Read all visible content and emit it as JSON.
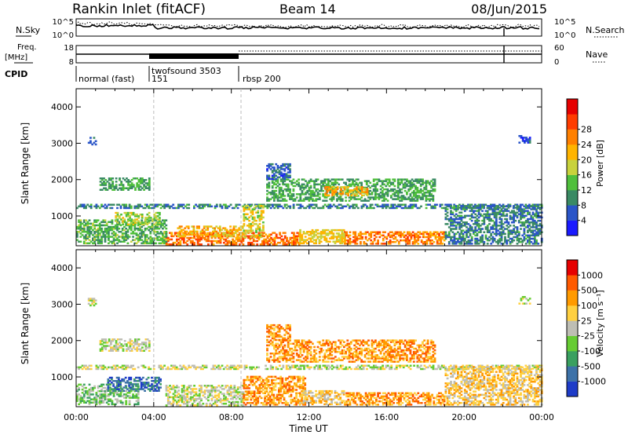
{
  "header": {
    "station": "Rankin Inlet (fitACF)",
    "beam": "Beam 14",
    "date": "08/Jun/2015"
  },
  "status": {
    "nsky_label": "N.Sky",
    "nsky_ticks": [
      "10^5",
      "10^0"
    ],
    "nsearch_label": "N.Search",
    "nsearch_ticks": [
      "10^5",
      "10^0"
    ],
    "freq_label_line1": "Freq.",
    "freq_label_line2": "[MHz]",
    "freq_ticks": [
      "18",
      "8"
    ],
    "nave_label": "Nave",
    "nave_ticks": [
      "60",
      "0"
    ],
    "cpid_label": "CPID",
    "modes": [
      {
        "name": "normal (fast)",
        "start_hour": 0.0
      },
      {
        "name": "151",
        "start_hour": 4.0
      },
      {
        "name": "twofsound 3503",
        "start_hour": 4.0
      },
      {
        "name": "rbsp 200",
        "start_hour": 8.5
      }
    ]
  },
  "chart_data": [
    {
      "type": "heatmap",
      "name": "power",
      "xlabel": "Time UT",
      "ylabel": "Slant Range [km]",
      "xlim": [
        0,
        24
      ],
      "ylim": [
        180,
        4500
      ],
      "yticks": [
        1000,
        2000,
        3000,
        4000
      ],
      "colorbar": {
        "label": "Power [dB]",
        "ticks": [
          "4",
          "8",
          "12",
          "16",
          "20",
          "24",
          "28"
        ],
        "colors": [
          "#1a1aff",
          "#2a55c8",
          "#3a8a64",
          "#4fbf3c",
          "#c8d23c",
          "#ffb400",
          "#ff8000",
          "#ff3c00",
          "#e60000"
        ]
      },
      "regions": [
        {
          "t0": 4.6,
          "t1": 11.5,
          "r0": 200,
          "r1": 520,
          "v": 27
        },
        {
          "t0": 5.2,
          "t1": 8.6,
          "r0": 420,
          "r1": 700,
          "v": 22
        },
        {
          "t0": 13.8,
          "t1": 19.0,
          "r0": 220,
          "r1": 560,
          "v": 26
        },
        {
          "t0": 11.5,
          "t1": 13.8,
          "r0": 230,
          "r1": 600,
          "v": 20
        },
        {
          "t0": 0.0,
          "t1": 4.6,
          "r0": 230,
          "r1": 900,
          "v": 13
        },
        {
          "t0": 1.2,
          "t1": 3.8,
          "r0": 1700,
          "r1": 2050,
          "v": 12
        },
        {
          "t0": 2.0,
          "t1": 4.3,
          "r0": 750,
          "r1": 1100,
          "v": 17
        },
        {
          "t0": 0.0,
          "t1": 24.0,
          "r0": 1200,
          "r1": 1300,
          "v": 9
        },
        {
          "t0": 9.8,
          "t1": 18.5,
          "r0": 1400,
          "r1": 2000,
          "v": 12
        },
        {
          "t0": 12.8,
          "t1": 15.0,
          "r0": 1550,
          "r1": 1800,
          "v": 22
        },
        {
          "t0": 9.8,
          "t1": 11.0,
          "r0": 2000,
          "r1": 2450,
          "v": 7
        },
        {
          "t0": 0.6,
          "t1": 1.0,
          "r0": 2950,
          "r1": 3150,
          "v": 5
        },
        {
          "t0": 22.8,
          "t1": 23.4,
          "r0": 3000,
          "r1": 3200,
          "v": 5
        },
        {
          "t0": 8.6,
          "t1": 9.6,
          "r0": 400,
          "r1": 1300,
          "v": 19
        },
        {
          "t0": 19.0,
          "t1": 24.0,
          "r0": 220,
          "r1": 1300,
          "v": 9
        }
      ]
    },
    {
      "type": "heatmap",
      "name": "velocity",
      "xlabel": "Time UT",
      "ylabel": "Slant Range [km]",
      "xlim": [
        0,
        24
      ],
      "ylim": [
        180,
        4500
      ],
      "yticks": [
        1000,
        2000,
        3000,
        4000
      ],
      "xticks": [
        "00:00",
        "04:00",
        "08:00",
        "12:00",
        "16:00",
        "20:00",
        "00:00"
      ],
      "colorbar": {
        "label": "Velocity [m s⁻¹]",
        "ticks": [
          "1000",
          "500",
          "100",
          "25",
          "-25",
          "-100",
          "-500",
          "-1000"
        ],
        "colors": [
          "#1e3cc8",
          "#3d72a8",
          "#3aa060",
          "#66cc33",
          "#bebeb4",
          "#ffd040",
          "#ff9a00",
          "#ff5a00",
          "#e60000"
        ]
      },
      "regions": [
        {
          "t0": 4.6,
          "t1": 8.6,
          "r0": 200,
          "r1": 760,
          "v": 4
        },
        {
          "t0": 8.6,
          "t1": 11.8,
          "r0": 220,
          "r1": 1000,
          "v": 6
        },
        {
          "t0": 13.8,
          "t1": 19.0,
          "r0": 220,
          "r1": 560,
          "v": 6
        },
        {
          "t0": 11.5,
          "t1": 13.8,
          "r0": 230,
          "r1": 600,
          "v": 5
        },
        {
          "t0": 0.0,
          "t1": 3.2,
          "r0": 230,
          "r1": 800,
          "v": 3
        },
        {
          "t0": 1.6,
          "t1": 4.3,
          "r0": 600,
          "r1": 1000,
          "v": 1
        },
        {
          "t0": 1.2,
          "t1": 3.8,
          "r0": 1700,
          "r1": 2050,
          "v": 4
        },
        {
          "t0": 0.0,
          "t1": 24.0,
          "r0": 1200,
          "r1": 1300,
          "v": 4
        },
        {
          "t0": 9.8,
          "t1": 18.5,
          "r0": 1400,
          "r1": 2000,
          "v": 6
        },
        {
          "t0": 9.8,
          "t1": 11.0,
          "r0": 2000,
          "r1": 2450,
          "v": 6
        },
        {
          "t0": 0.6,
          "t1": 1.0,
          "r0": 2950,
          "r1": 3150,
          "v": 4
        },
        {
          "t0": 22.8,
          "t1": 23.4,
          "r0": 3000,
          "r1": 3200,
          "v": 4
        },
        {
          "t0": 19.0,
          "t1": 24.0,
          "r0": 220,
          "r1": 1300,
          "v": 5
        }
      ]
    }
  ]
}
